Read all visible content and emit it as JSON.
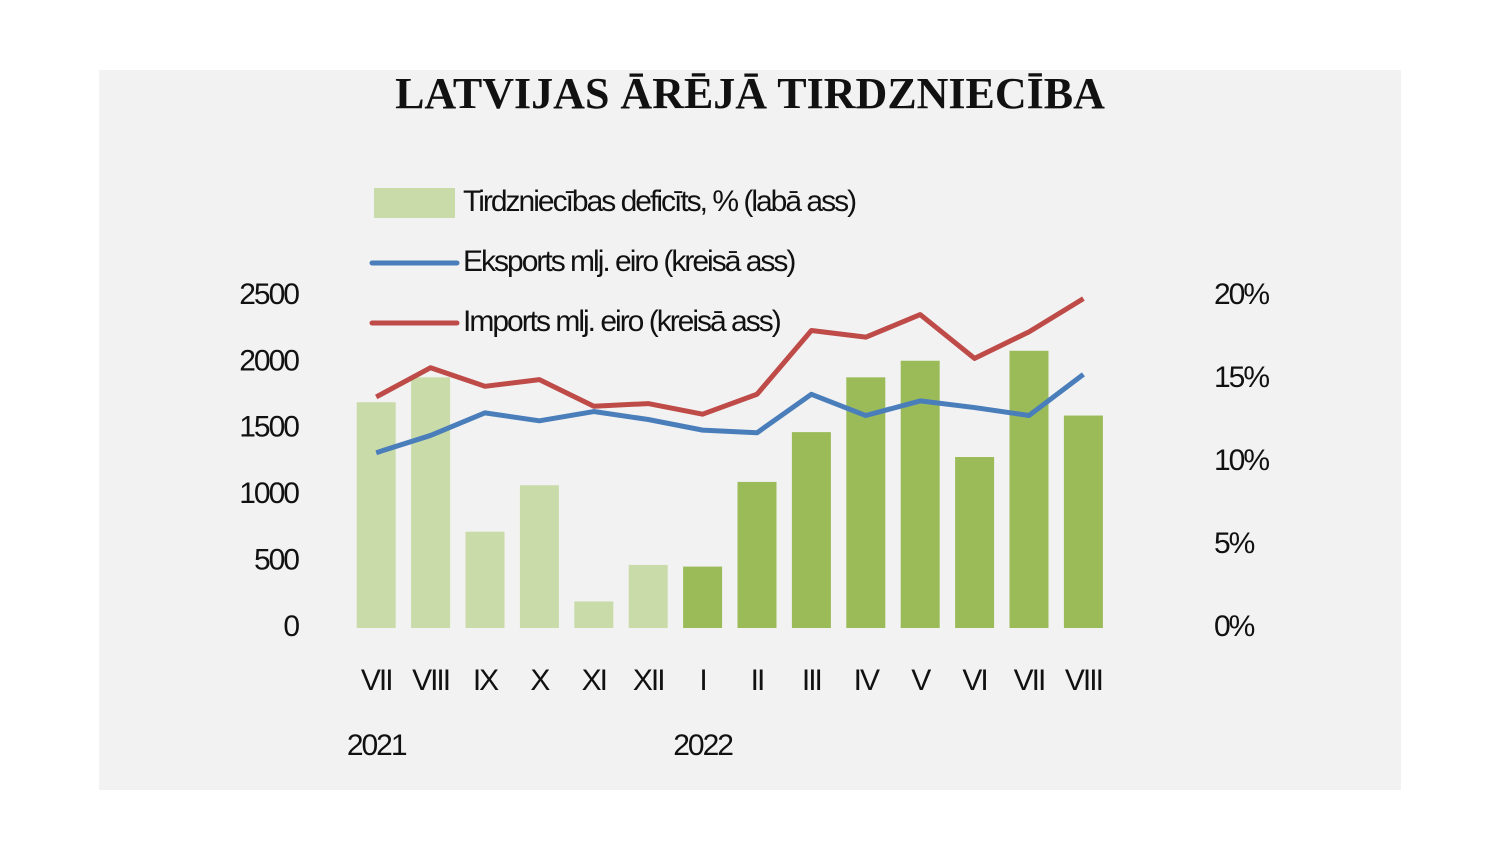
{
  "chart_data": {
    "type": "bar_line",
    "title": "LATVIJAS ĀRĒJĀ TIRDZNIECĪBA",
    "categories": [
      "VII",
      "VIII",
      "IX",
      "X",
      "XI",
      "XII",
      "I",
      "II",
      "III",
      "IV",
      "V",
      "VI",
      "VII",
      "VIII"
    ],
    "years": [
      "2021",
      null,
      null,
      null,
      null,
      null,
      "2022",
      null,
      null,
      null,
      null,
      null,
      null,
      null
    ],
    "series": [
      {
        "name": "Tirdzniecības deficīts, % (labā ass)",
        "type": "bar",
        "axis": "y2",
        "color": "#c9dba8",
        "colors": [
          "#c9dba8",
          "#c9dba8",
          "#c9dba8",
          "#c9dba8",
          "#c9dba8",
          "#c9dba8",
          "#9bbb59",
          "#9bbb59",
          "#9bbb59",
          "#9bbb59",
          "#9bbb59",
          "#9bbb59",
          "#9bbb59",
          "#9bbb59"
        ],
        "values": [
          13.6,
          15.1,
          5.8,
          8.6,
          1.6,
          3.8,
          3.7,
          8.8,
          11.8,
          15.1,
          16.1,
          10.3,
          16.7,
          12.8
        ]
      },
      {
        "name": "Eksports mlj. eiro (kreisā ass)",
        "type": "line",
        "color": "#4a7ebb",
        "values": [
          1320,
          1450,
          1620,
          1560,
          1630,
          1570,
          1490,
          1470,
          1760,
          1600,
          1710,
          1660,
          1600,
          1910
        ]
      },
      {
        "name": "Imports mlj. eiro (kreisā ass)",
        "type": "line",
        "color": "#be4b48",
        "values": [
          1740,
          1960,
          1820,
          1870,
          1670,
          1690,
          1610,
          1760,
          2240,
          2190,
          2360,
          2030,
          2230,
          2480
        ]
      }
    ],
    "ylim": [
      0,
      2500
    ],
    "yticks": [
      0,
      500,
      1000,
      1500,
      2000,
      2500
    ],
    "y2lim": [
      0,
      20
    ],
    "y2ticks": [
      {
        "value": 0,
        "label": "0%"
      },
      {
        "value": 5,
        "label": "5%"
      },
      {
        "value": 10,
        "label": "10%"
      },
      {
        "value": 15,
        "label": "15%"
      },
      {
        "value": 20,
        "label": "20%"
      }
    ],
    "background": "#f2f2f2"
  }
}
